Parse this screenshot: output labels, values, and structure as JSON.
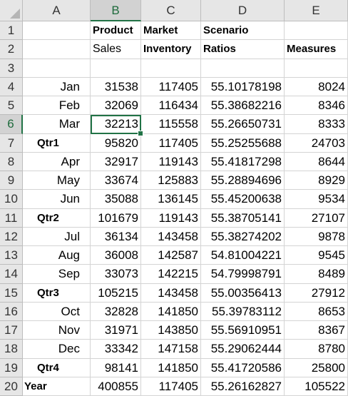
{
  "columns": [
    "A",
    "B",
    "C",
    "D",
    "E"
  ],
  "active_column": "B",
  "active_row": 6,
  "header_rows": [
    {
      "row": "1",
      "A": "",
      "B": "Product",
      "C": "Market",
      "D": "Scenario",
      "E": ""
    },
    {
      "row": "2",
      "A": "",
      "B": "Sales",
      "C": "Inventory",
      "D": "Ratios",
      "E": "Measures"
    }
  ],
  "empty_row": "3",
  "data_rows": [
    {
      "row": "4",
      "label": "Jan",
      "kind": "month",
      "sales": "31538",
      "inventory": "117405",
      "ratios": "55.10178198",
      "measures": "8024"
    },
    {
      "row": "5",
      "label": "Feb",
      "kind": "month",
      "sales": "32069",
      "inventory": "116434",
      "ratios": "55.38682216",
      "measures": "8346"
    },
    {
      "row": "6",
      "label": "Mar",
      "kind": "month",
      "sales": "32213",
      "inventory": "115558",
      "ratios": "55.26650731",
      "measures": "8333"
    },
    {
      "row": "7",
      "label": "Qtr1",
      "kind": "qtr",
      "sales": "95820",
      "inventory": "117405",
      "ratios": "55.25255688",
      "measures": "24703"
    },
    {
      "row": "8",
      "label": "Apr",
      "kind": "month",
      "sales": "32917",
      "inventory": "119143",
      "ratios": "55.41817298",
      "measures": "8644"
    },
    {
      "row": "9",
      "label": "May",
      "kind": "month",
      "sales": "33674",
      "inventory": "125883",
      "ratios": "55.28894696",
      "measures": "8929"
    },
    {
      "row": "10",
      "label": "Jun",
      "kind": "month",
      "sales": "35088",
      "inventory": "136145",
      "ratios": "55.45200638",
      "measures": "9534"
    },
    {
      "row": "11",
      "label": "Qtr2",
      "kind": "qtr",
      "sales": "101679",
      "inventory": "119143",
      "ratios": "55.38705141",
      "measures": "27107"
    },
    {
      "row": "12",
      "label": "Jul",
      "kind": "month",
      "sales": "36134",
      "inventory": "143458",
      "ratios": "55.38274202",
      "measures": "9878"
    },
    {
      "row": "13",
      "label": "Aug",
      "kind": "month",
      "sales": "36008",
      "inventory": "142587",
      "ratios": "54.81004221",
      "measures": "9545"
    },
    {
      "row": "14",
      "label": "Sep",
      "kind": "month",
      "sales": "33073",
      "inventory": "142215",
      "ratios": "54.79998791",
      "measures": "8489"
    },
    {
      "row": "15",
      "label": "Qtr3",
      "kind": "qtr",
      "sales": "105215",
      "inventory": "143458",
      "ratios": "55.00356413",
      "measures": "27912"
    },
    {
      "row": "16",
      "label": "Oct",
      "kind": "month",
      "sales": "32828",
      "inventory": "141850",
      "ratios": "55.39783112",
      "measures": "8653"
    },
    {
      "row": "17",
      "label": "Nov",
      "kind": "month",
      "sales": "31971",
      "inventory": "143850",
      "ratios": "55.56910951",
      "measures": "8367"
    },
    {
      "row": "18",
      "label": "Dec",
      "kind": "month",
      "sales": "33342",
      "inventory": "147158",
      "ratios": "55.29062444",
      "measures": "8780"
    },
    {
      "row": "19",
      "label": "Qtr4",
      "kind": "qtr",
      "sales": "98141",
      "inventory": "141850",
      "ratios": "55.41720586",
      "measures": "25800"
    },
    {
      "row": "20",
      "label": "Year",
      "kind": "year",
      "sales": "400855",
      "inventory": "117405",
      "ratios": "55.26162827",
      "measures": "105522"
    }
  ],
  "colors": {
    "selection": "#217346",
    "header_bg": "#e6e6e6",
    "active_header_bg": "#d2d2d2",
    "gridline": "#d4d4d4"
  }
}
